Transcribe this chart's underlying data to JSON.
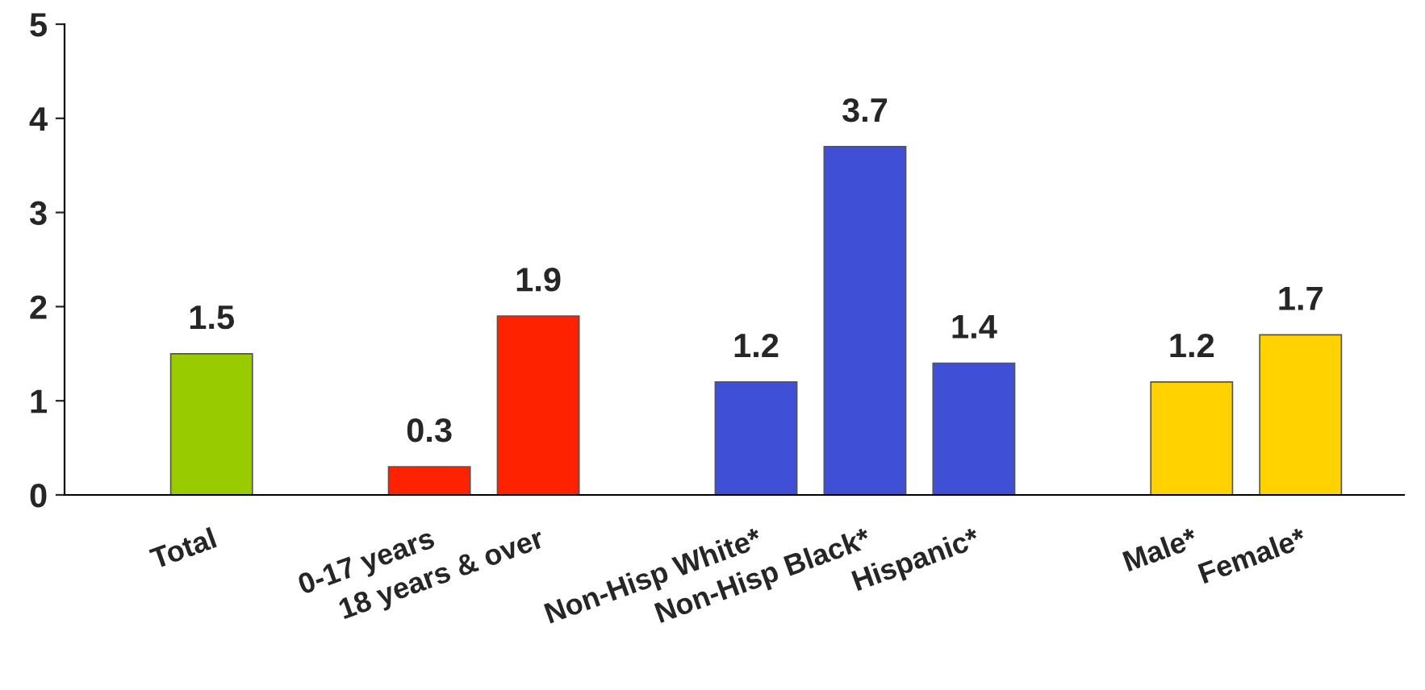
{
  "chart_data": {
    "type": "bar",
    "categories": [
      "Total",
      null,
      "0-17 years",
      "18 years & over",
      null,
      "Non-Hisp White*",
      "Non-Hisp Black*",
      "Hispanic*",
      null,
      "Male*",
      "Female*"
    ],
    "values": [
      1.5,
      null,
      0.3,
      1.9,
      null,
      1.2,
      3.7,
      1.4,
      null,
      1.2,
      1.7
    ],
    "colors": [
      "#99cc00",
      null,
      "#ff2200",
      "#ff2200",
      null,
      "#3f4fd6",
      "#3f4fd6",
      "#3f4fd6",
      null,
      "#ffd200",
      "#ffd200"
    ],
    "ylim": [
      0,
      5
    ],
    "yticks": [
      0,
      1,
      2,
      3,
      4,
      5
    ],
    "grid": false,
    "data_labels": true
  }
}
